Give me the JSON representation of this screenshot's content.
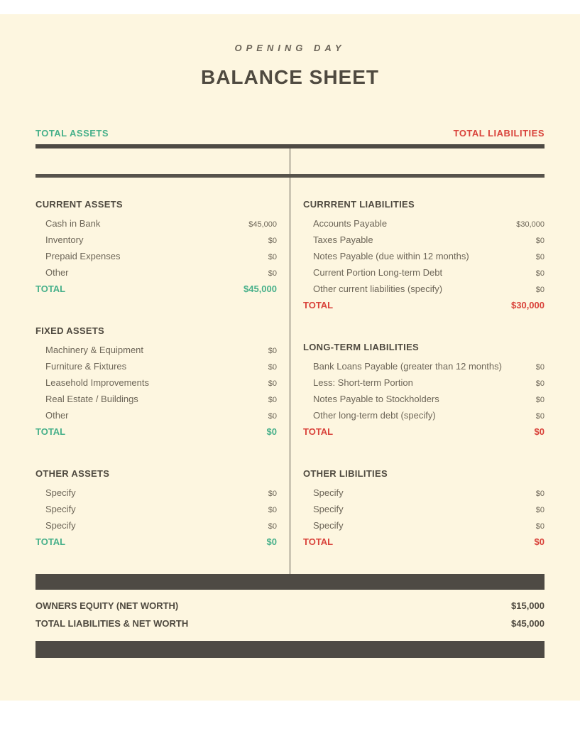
{
  "kicker": "OPENING DAY",
  "title": "BALANCE SHEET",
  "labels": {
    "total_assets": "TOTAL ASSETS",
    "total_liabilities": "TOTAL LIABILITIES",
    "total": "TOTAL"
  },
  "colors": {
    "page_bg": "#fdf6e0",
    "text": "#555045",
    "heading": "#4f4a40",
    "assets_accent": "#47b08a",
    "liab_accent": "#d9433b",
    "rule": "#4e4a44"
  },
  "assets": {
    "current": {
      "heading": "CURRENT ASSETS",
      "items": [
        {
          "label": "Cash in Bank",
          "value": "$45,000"
        },
        {
          "label": "Inventory",
          "value": "$0"
        },
        {
          "label": "Prepaid Expenses",
          "value": "$0"
        },
        {
          "label": "Other",
          "value": "$0"
        }
      ],
      "total": "$45,000"
    },
    "fixed": {
      "heading": "FIXED ASSETS",
      "items": [
        {
          "label": "Machinery & Equipment",
          "value": "$0"
        },
        {
          "label": "Furniture & Fixtures",
          "value": "$0"
        },
        {
          "label": "Leasehold Improvements",
          "value": "$0"
        },
        {
          "label": "Real Estate / Buildings",
          "value": "$0"
        },
        {
          "label": "Other",
          "value": "$0"
        }
      ],
      "total": "$0"
    },
    "other": {
      "heading": "OTHER ASSETS",
      "items": [
        {
          "label": "Specify",
          "value": "$0"
        },
        {
          "label": "Specify",
          "value": "$0"
        },
        {
          "label": "Specify",
          "value": "$0"
        }
      ],
      "total": "$0"
    }
  },
  "liabilities": {
    "current": {
      "heading": "CURRRENT LIABILITIES",
      "items": [
        {
          "label": "Accounts Payable",
          "value": "$30,000"
        },
        {
          "label": "Taxes Payable",
          "value": "$0"
        },
        {
          "label": "Notes Payable (due within 12 months)",
          "value": "$0"
        },
        {
          "label": "Current Portion Long-term Debt",
          "value": "$0"
        },
        {
          "label": "Other current liabilities (specify)",
          "value": "$0"
        }
      ],
      "total": "$30,000"
    },
    "longterm": {
      "heading": "LONG-TERM LIABILITIES",
      "items": [
        {
          "label": "Bank Loans Payable (greater than 12 months)",
          "value": "$0"
        },
        {
          "label": "Less: Short-term Portion",
          "value": "$0"
        },
        {
          "label": "Notes Payable to Stockholders",
          "value": "$0"
        },
        {
          "label": "Other long-term debt (specify)",
          "value": "$0"
        }
      ],
      "total": "$0"
    },
    "other": {
      "heading": "OTHER LIBILITIES",
      "items": [
        {
          "label": "Specify",
          "value": "$0"
        },
        {
          "label": "Specify",
          "value": "$0"
        },
        {
          "label": "Specify",
          "value": "$0"
        }
      ],
      "total": "$0"
    }
  },
  "summary": {
    "equity": {
      "label": "OWNERS EQUITY (NET WORTH)",
      "value": "$15,000"
    },
    "total": {
      "label": "TOTAL LIABILITIES & NET WORTH",
      "value": "$45,000"
    }
  }
}
